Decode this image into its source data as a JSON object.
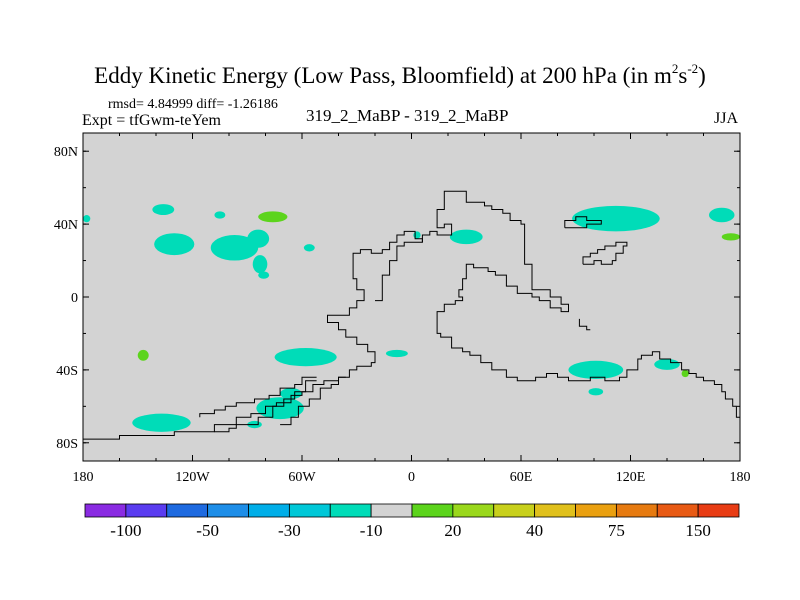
{
  "title": {
    "main": "Eddy Kinetic Energy (Low Pass, Bloomfield) at 200 hPa (in m",
    "sup1": "2",
    "mid": "s",
    "sup2": "-2",
    "close": ")"
  },
  "stats": "rmsd= 4.84999 diff= -1.26186",
  "expt": "Expt = tfGwm-teYem",
  "subtitle": "319_2_MaBP - 319_2_MaBP",
  "season": "JJA",
  "axes": {
    "x_ticks": [
      {
        "value": -180,
        "label": "180"
      },
      {
        "value": -120,
        "label": "120W"
      },
      {
        "value": -60,
        "label": "60W"
      },
      {
        "value": 0,
        "label": "0"
      },
      {
        "value": 60,
        "label": "60E"
      },
      {
        "value": 120,
        "label": "120E"
      },
      {
        "value": 180,
        "label": "180"
      }
    ],
    "y_ticks": [
      {
        "value": 80,
        "label": "80N"
      },
      {
        "value": 40,
        "label": "40N"
      },
      {
        "value": 0,
        "label": "0"
      },
      {
        "value": -40,
        "label": "40S"
      },
      {
        "value": -80,
        "label": "80S"
      }
    ],
    "x_range": [
      -180,
      180
    ],
    "y_range": [
      -90,
      90
    ]
  },
  "colorbar": {
    "colors": [
      "#8a2be2",
      "#5a3cf0",
      "#1e6ae0",
      "#1e8ee8",
      "#00aee8",
      "#00c8d8",
      "#00dcb8",
      "#d3d3d3",
      "#5cd41c",
      "#9ad81c",
      "#c8d01c",
      "#e0c01c",
      "#eaa010",
      "#e67a10",
      "#e85a14",
      "#e83c14"
    ],
    "labels": [
      {
        "boundary": 1,
        "text": "-100"
      },
      {
        "boundary": 3,
        "text": "-50"
      },
      {
        "boundary": 5,
        "text": "-30"
      },
      {
        "boundary": 7,
        "text": "-10"
      },
      {
        "boundary": 9,
        "text": "20"
      },
      {
        "boundary": 11,
        "text": "40"
      },
      {
        "boundary": 13,
        "text": "75"
      },
      {
        "boundary": 15,
        "text": "150"
      }
    ]
  },
  "colors": {
    "background": "#d3d3d3",
    "negative_fill": "#00dcb8",
    "positive_fill": "#5cd41c",
    "coast": "#000000"
  },
  "features": [
    {
      "type": "blob",
      "color": "#00dcb8",
      "lon": -136,
      "lat": 48,
      "rlon": 6,
      "rlat": 3
    },
    {
      "type": "blob",
      "color": "#00dcb8",
      "lon": -130,
      "lat": 29,
      "rlon": 11,
      "rlat": 6
    },
    {
      "type": "blob",
      "color": "#00dcb8",
      "lon": -97,
      "lat": 27,
      "rlon": 13,
      "rlat": 7
    },
    {
      "type": "blob",
      "color": "#00dcb8",
      "lon": -84,
      "lat": 32,
      "rlon": 6,
      "rlat": 5
    },
    {
      "type": "blob",
      "color": "#00dcb8",
      "lon": -83,
      "lat": 18,
      "rlon": 4,
      "rlat": 5
    },
    {
      "type": "blob",
      "color": "#00dcb8",
      "lon": -105,
      "lat": 45,
      "rlon": 3,
      "rlat": 2
    },
    {
      "type": "blob",
      "color": "#00dcb8",
      "lon": -56,
      "lat": 27,
      "rlon": 3,
      "rlat": 2
    },
    {
      "type": "blob",
      "color": "#00dcb8",
      "lon": -81,
      "lat": 12,
      "rlon": 3,
      "rlat": 2
    },
    {
      "type": "blob",
      "color": "#00dcb8",
      "lon": 3,
      "lat": 34,
      "rlon": 2,
      "rlat": 2
    },
    {
      "type": "blob",
      "color": "#00dcb8",
      "lon": 30,
      "lat": 33,
      "rlon": 9,
      "rlat": 4
    },
    {
      "type": "blob",
      "color": "#00dcb8",
      "lon": 112,
      "lat": 43,
      "rlon": 24,
      "rlat": 7
    },
    {
      "type": "blob",
      "color": "#00dcb8",
      "lon": 170,
      "lat": 45,
      "rlon": 7,
      "rlat": 4
    },
    {
      "type": "blob",
      "color": "#00dcb8",
      "lon": -178,
      "lat": 43,
      "rlon": 2,
      "rlat": 2
    },
    {
      "type": "blob",
      "color": "#00dcb8",
      "lon": -58,
      "lat": -33,
      "rlon": 17,
      "rlat": 5
    },
    {
      "type": "blob",
      "color": "#00dcb8",
      "lon": -8,
      "lat": -31,
      "rlon": 6,
      "rlat": 2
    },
    {
      "type": "blob",
      "color": "#00dcb8",
      "lon": 101,
      "lat": -40,
      "rlon": 15,
      "rlat": 5
    },
    {
      "type": "blob",
      "color": "#00dcb8",
      "lon": 101,
      "lat": -52,
      "rlon": 4,
      "rlat": 2
    },
    {
      "type": "blob",
      "color": "#00dcb8",
      "lon": 140,
      "lat": -37,
      "rlon": 7,
      "rlat": 3
    },
    {
      "type": "blob",
      "color": "#00dcb8",
      "lon": -137,
      "lat": -69,
      "rlon": 16,
      "rlat": 5
    },
    {
      "type": "blob",
      "color": "#00dcb8",
      "lon": -72,
      "lat": -61,
      "rlon": 13,
      "rlat": 6
    },
    {
      "type": "blob",
      "color": "#00dcb8",
      "lon": -66,
      "lat": -53,
      "rlon": 6,
      "rlat": 3
    },
    {
      "type": "blob",
      "color": "#00dcb8",
      "lon": -86,
      "lat": -70,
      "rlon": 4,
      "rlat": 2
    },
    {
      "type": "blob",
      "color": "#5cd41c",
      "lon": -76,
      "lat": 44,
      "rlon": 8,
      "rlat": 3
    },
    {
      "type": "blob",
      "color": "#5cd41c",
      "lon": -147,
      "lat": -32,
      "rlon": 3,
      "rlat": 3
    },
    {
      "type": "blob",
      "color": "#5cd41c",
      "lon": 175,
      "lat": 33,
      "rlon": 5,
      "rlat": 2
    },
    {
      "type": "blob",
      "color": "#5cd41c",
      "lon": 150,
      "lat": -42,
      "rlon": 2,
      "rlat": 2
    }
  ],
  "coastlines": [
    [
      [
        -20,
        -2
      ],
      [
        -16,
        -2
      ],
      [
        -16,
        12
      ],
      [
        -12,
        12
      ],
      [
        -12,
        20
      ],
      [
        -8,
        20
      ],
      [
        -8,
        28
      ],
      [
        -4,
        28
      ],
      [
        -4,
        30
      ],
      [
        0,
        30
      ],
      [
        6,
        30
      ],
      [
        6,
        34
      ],
      [
        10,
        34
      ],
      [
        10,
        36
      ],
      [
        14,
        36
      ],
      [
        14,
        34
      ],
      [
        22,
        34
      ],
      [
        22,
        40
      ],
      [
        18,
        40
      ],
      [
        18,
        38
      ],
      [
        14,
        38
      ],
      [
        14,
        48
      ],
      [
        18,
        48
      ],
      [
        18,
        58
      ],
      [
        30,
        58
      ],
      [
        30,
        52
      ],
      [
        40,
        52
      ],
      [
        40,
        50
      ],
      [
        44,
        50
      ],
      [
        44,
        48
      ],
      [
        50,
        48
      ],
      [
        50,
        46
      ],
      [
        54,
        46
      ],
      [
        54,
        42
      ],
      [
        60,
        42
      ],
      [
        60,
        40
      ],
      [
        62,
        40
      ],
      [
        62,
        18
      ],
      [
        66,
        18
      ],
      [
        66,
        4
      ],
      [
        76,
        4
      ],
      [
        76,
        0
      ],
      [
        82,
        0
      ],
      [
        82,
        -4
      ],
      [
        86,
        -4
      ],
      [
        86,
        -8
      ],
      [
        82,
        -8
      ],
      [
        82,
        -6
      ],
      [
        76,
        -6
      ],
      [
        76,
        -2
      ],
      [
        70,
        -2
      ],
      [
        70,
        0
      ],
      [
        66,
        0
      ],
      [
        66,
        2
      ],
      [
        58,
        2
      ],
      [
        58,
        6
      ],
      [
        52,
        6
      ],
      [
        52,
        12
      ],
      [
        46,
        12
      ],
      [
        46,
        14
      ],
      [
        42,
        14
      ],
      [
        42,
        16
      ],
      [
        34,
        16
      ],
      [
        34,
        18
      ],
      [
        30,
        18
      ],
      [
        30,
        10
      ],
      [
        28,
        10
      ],
      [
        28,
        4
      ],
      [
        26,
        4
      ],
      [
        26,
        0
      ],
      [
        28,
        0
      ],
      [
        28,
        -2
      ],
      [
        24,
        -2
      ],
      [
        24,
        -4
      ],
      [
        18,
        -4
      ],
      [
        18,
        -8
      ],
      [
        14,
        -8
      ],
      [
        14,
        -20
      ],
      [
        16,
        -20
      ],
      [
        16,
        -22
      ],
      [
        22,
        -22
      ],
      [
        22,
        -28
      ],
      [
        28,
        -28
      ],
      [
        28,
        -30
      ],
      [
        32,
        -30
      ],
      [
        32,
        -32
      ],
      [
        38,
        -32
      ],
      [
        38,
        -36
      ],
      [
        44,
        -36
      ],
      [
        44,
        -40
      ],
      [
        52,
        -40
      ],
      [
        52,
        -44
      ],
      [
        58,
        -44
      ],
      [
        58,
        -46
      ],
      [
        68,
        -46
      ],
      [
        68,
        -44
      ],
      [
        74,
        -44
      ],
      [
        74,
        -42
      ],
      [
        80,
        -42
      ],
      [
        80,
        -44
      ],
      [
        86,
        -44
      ],
      [
        86,
        -46
      ],
      [
        98,
        -46
      ],
      [
        98,
        -44
      ],
      [
        106,
        -44
      ],
      [
        106,
        -46
      ],
      [
        114,
        -46
      ],
      [
        114,
        -44
      ],
      [
        118,
        -44
      ],
      [
        118,
        -40
      ],
      [
        124,
        -40
      ],
      [
        124,
        -34
      ],
      [
        126,
        -34
      ],
      [
        126,
        -32
      ],
      [
        132,
        -32
      ],
      [
        132,
        -30
      ],
      [
        136,
        -30
      ],
      [
        136,
        -34
      ],
      [
        142,
        -34
      ],
      [
        142,
        -36
      ],
      [
        148,
        -36
      ],
      [
        148,
        -40
      ],
      [
        152,
        -40
      ],
      [
        152,
        -42
      ],
      [
        156,
        -42
      ],
      [
        156,
        -44
      ],
      [
        160,
        -44
      ],
      [
        160,
        -46
      ],
      [
        166,
        -46
      ],
      [
        166,
        -48
      ],
      [
        170,
        -48
      ],
      [
        170,
        -52
      ],
      [
        172,
        -52
      ],
      [
        172,
        -56
      ],
      [
        176,
        -56
      ],
      [
        176,
        -60
      ],
      [
        178,
        -60
      ],
      [
        178,
        -66
      ],
      [
        180,
        -66
      ]
    ],
    [
      [
        -180,
        -78
      ],
      [
        -160,
        -78
      ],
      [
        -160,
        -76
      ],
      [
        -130,
        -76
      ],
      [
        -130,
        -74
      ],
      [
        -108,
        -74
      ],
      [
        -108,
        -70
      ],
      [
        -96,
        -70
      ],
      [
        -96,
        -66
      ],
      [
        -88,
        -66
      ],
      [
        -88,
        -64
      ],
      [
        -80,
        -64
      ],
      [
        -80,
        -60
      ],
      [
        -74,
        -60
      ],
      [
        -74,
        -58
      ],
      [
        -66,
        -58
      ],
      [
        -66,
        -54
      ],
      [
        -60,
        -54
      ],
      [
        -60,
        -52
      ],
      [
        -54,
        -52
      ],
      [
        -54,
        -48
      ],
      [
        -48,
        -48
      ],
      [
        -48,
        -46
      ],
      [
        -40,
        -46
      ],
      [
        -40,
        -44
      ],
      [
        -34,
        -44
      ],
      [
        -34,
        -40
      ],
      [
        -30,
        -40
      ],
      [
        -30,
        -38
      ],
      [
        -22,
        -38
      ],
      [
        -22,
        -36
      ],
      [
        -20,
        -36
      ],
      [
        -20,
        -30
      ],
      [
        -24,
        -30
      ],
      [
        -24,
        -26
      ],
      [
        -30,
        -26
      ],
      [
        -30,
        -22
      ],
      [
        -36,
        -22
      ],
      [
        -36,
        -18
      ],
      [
        -40,
        -18
      ],
      [
        -40,
        -14
      ],
      [
        -46,
        -14
      ],
      [
        -46,
        -10
      ],
      [
        -34,
        -10
      ],
      [
        -34,
        -6
      ],
      [
        -30,
        -6
      ],
      [
        -30,
        -2
      ],
      [
        -26,
        -2
      ],
      [
        -26,
        4
      ],
      [
        -30,
        4
      ],
      [
        -30,
        10
      ],
      [
        -32,
        10
      ],
      [
        -32,
        24
      ],
      [
        -28,
        24
      ],
      [
        -28,
        26
      ],
      [
        -22,
        26
      ],
      [
        -22,
        24
      ],
      [
        -16,
        24
      ],
      [
        -16,
        26
      ],
      [
        -12,
        26
      ],
      [
        -12,
        30
      ],
      [
        -8,
        30
      ],
      [
        -8,
        34
      ],
      [
        -4,
        34
      ],
      [
        -4,
        36
      ],
      [
        2,
        36
      ],
      [
        2,
        32
      ],
      [
        6,
        32
      ],
      [
        6,
        30
      ]
    ],
    [
      [
        -52,
        -44
      ],
      [
        -60,
        -44
      ],
      [
        -60,
        -48
      ],
      [
        -64,
        -48
      ],
      [
        -64,
        -50
      ],
      [
        -72,
        -50
      ],
      [
        -72,
        -54
      ],
      [
        -78,
        -54
      ],
      [
        -78,
        -56
      ],
      [
        -86,
        -56
      ],
      [
        -86,
        -58
      ],
      [
        -96,
        -58
      ],
      [
        -96,
        -60
      ],
      [
        -102,
        -60
      ],
      [
        -102,
        -62
      ],
      [
        -108,
        -62
      ],
      [
        -108,
        -64
      ],
      [
        -116,
        -64
      ],
      [
        -116,
        -66
      ]
    ],
    [
      [
        -52,
        -46
      ],
      [
        -58,
        -46
      ],
      [
        -58,
        -52
      ],
      [
        -64,
        -52
      ],
      [
        -64,
        -56
      ],
      [
        -70,
        -56
      ],
      [
        -70,
        -60
      ],
      [
        -76,
        -60
      ],
      [
        -76,
        -66
      ],
      [
        -84,
        -66
      ],
      [
        -84,
        -70
      ],
      [
        -96,
        -70
      ],
      [
        -96,
        -72
      ],
      [
        -100,
        -72
      ],
      [
        -100,
        -74
      ],
      [
        -108,
        -74
      ]
    ],
    [
      [
        -36,
        -44
      ],
      [
        -40,
        -44
      ],
      [
        -40,
        -48
      ],
      [
        -44,
        -48
      ],
      [
        -44,
        -50
      ],
      [
        -50,
        -50
      ],
      [
        -50,
        -56
      ],
      [
        -56,
        -56
      ],
      [
        -56,
        -60
      ],
      [
        -62,
        -60
      ],
      [
        -62,
        -66
      ],
      [
        -66,
        -66
      ],
      [
        -66,
        -70
      ],
      [
        -72,
        -70
      ]
    ],
    [
      [
        94,
        18
      ],
      [
        94,
        22
      ],
      [
        98,
        22
      ],
      [
        98,
        24
      ],
      [
        102,
        24
      ],
      [
        102,
        26
      ],
      [
        106,
        26
      ],
      [
        106,
        28
      ],
      [
        112,
        28
      ],
      [
        112,
        30
      ],
      [
        118,
        30
      ],
      [
        118,
        28
      ],
      [
        116,
        28
      ],
      [
        116,
        24
      ],
      [
        112,
        24
      ],
      [
        112,
        20
      ],
      [
        110,
        20
      ],
      [
        110,
        18
      ],
      [
        104,
        18
      ],
      [
        104,
        20
      ],
      [
        100,
        20
      ],
      [
        100,
        18
      ],
      [
        94,
        18
      ]
    ],
    [
      [
        92,
        -12
      ],
      [
        92,
        -16
      ],
      [
        96,
        -16
      ],
      [
        96,
        -18
      ],
      [
        98,
        -18
      ]
    ],
    [
      [
        84,
        38
      ],
      [
        84,
        42
      ],
      [
        90,
        42
      ],
      [
        90,
        44
      ],
      [
        96,
        44
      ],
      [
        96,
        42
      ],
      [
        104,
        42
      ],
      [
        104,
        40
      ],
      [
        96,
        40
      ],
      [
        96,
        38
      ],
      [
        90,
        38
      ],
      [
        84,
        38
      ]
    ]
  ]
}
